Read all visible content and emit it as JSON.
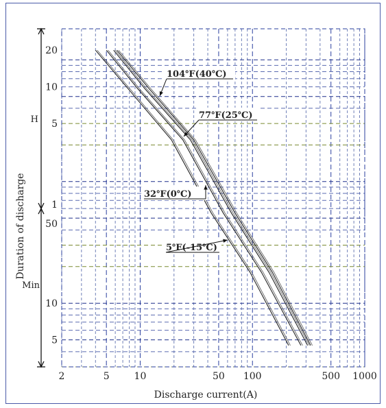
{
  "chart_data": {
    "type": "line",
    "xlabel": "Discharge current(A)",
    "ylabel": "Duration of discharge",
    "x_scale": "log",
    "y_scale": "log",
    "xlim": [
      2,
      1000
    ],
    "ylim_minutes": [
      3,
      1800
    ],
    "x_ticks": [
      {
        "value": 2,
        "label": "2"
      },
      {
        "value": 5,
        "label": "5"
      },
      {
        "value": 10,
        "label": "10"
      },
      {
        "value": 50,
        "label": "50"
      },
      {
        "value": 100,
        "label": "100"
      },
      {
        "value": 500,
        "label": "500"
      },
      {
        "value": 1000,
        "label": "1000"
      }
    ],
    "y_ticks": [
      {
        "value_minutes": 1200,
        "label": "20"
      },
      {
        "value_minutes": 600,
        "label": "10"
      },
      {
        "value_minutes": 300,
        "label": "5"
      },
      {
        "value_minutes": 60,
        "label": "1"
      },
      {
        "value_minutes": 50,
        "label": "50"
      },
      {
        "value_minutes": 10,
        "label": "10"
      },
      {
        "value_minutes": 5,
        "label": "5"
      }
    ],
    "y_unit_labels": {
      "hours": "H",
      "minutes": "Min"
    },
    "grid": true,
    "series": [
      {
        "name": "104℉(40℃)",
        "points": [
          [
            6.2,
            1200
          ],
          [
            12,
            580
          ],
          [
            30,
            220
          ],
          [
            70,
            55
          ],
          [
            150,
            18
          ],
          [
            330,
            4.5
          ]
        ]
      },
      {
        "name": "77℉(25℃)",
        "points": [
          [
            5.8,
            1200
          ],
          [
            11,
            580
          ],
          [
            28,
            220
          ],
          [
            65,
            55
          ],
          [
            140,
            18
          ],
          [
            310,
            4.5
          ]
        ]
      },
      {
        "name": "32℉(0℃)",
        "points": [
          [
            5.0,
            1200
          ],
          [
            9.5,
            580
          ],
          [
            24,
            220
          ],
          [
            55,
            55
          ],
          [
            120,
            18
          ],
          [
            270,
            4.5
          ]
        ]
      },
      {
        "name": "5℉(-15℃)",
        "points": [
          [
            4.0,
            1200
          ],
          [
            7.8,
            580
          ],
          [
            19,
            220
          ],
          [
            43,
            55
          ],
          [
            95,
            18
          ],
          [
            210,
            4.5
          ]
        ]
      }
    ],
    "annotations": [
      {
        "text": "104℉(40℃)",
        "series": 0
      },
      {
        "text": "77℉(25℃)",
        "series": 1
      },
      {
        "text": "32℉(0℃)",
        "series": 2
      },
      {
        "text": "5℉(-15℃)",
        "series": 3
      }
    ]
  }
}
